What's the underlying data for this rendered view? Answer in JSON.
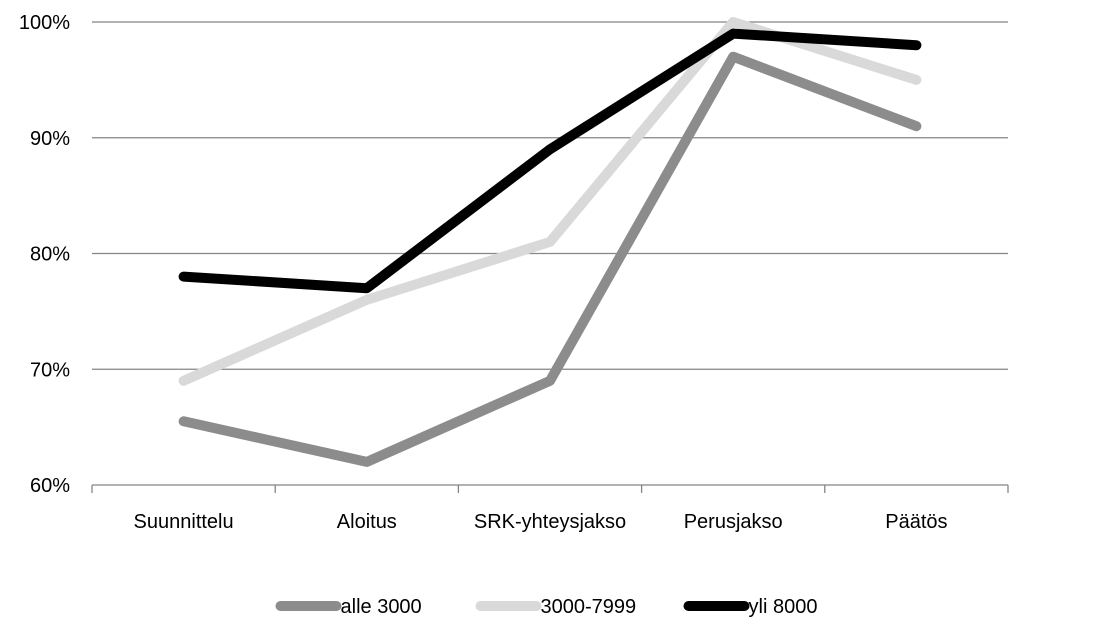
{
  "chart_data": {
    "type": "line",
    "categories": [
      "Suunnittelu",
      "Aloitus",
      "SRK-yhteysjakso",
      "Perusjakso",
      "Päätös"
    ],
    "series": [
      {
        "name": "alle 3000",
        "values": [
          65.5,
          62,
          69,
          97,
          91
        ],
        "color": "#8c8c8c"
      },
      {
        "name": "3000-7999",
        "values": [
          69,
          76,
          81,
          100,
          95
        ],
        "color": "#d9d9d9"
      },
      {
        "name": "yli 8000",
        "values": [
          78,
          77,
          89,
          99,
          98
        ],
        "color": "#000000"
      }
    ],
    "y_ticks": [
      "60%",
      "70%",
      "80%",
      "90%",
      "100%"
    ],
    "ylim": [
      60,
      100
    ],
    "grid": true,
    "legend_position": "bottom"
  }
}
